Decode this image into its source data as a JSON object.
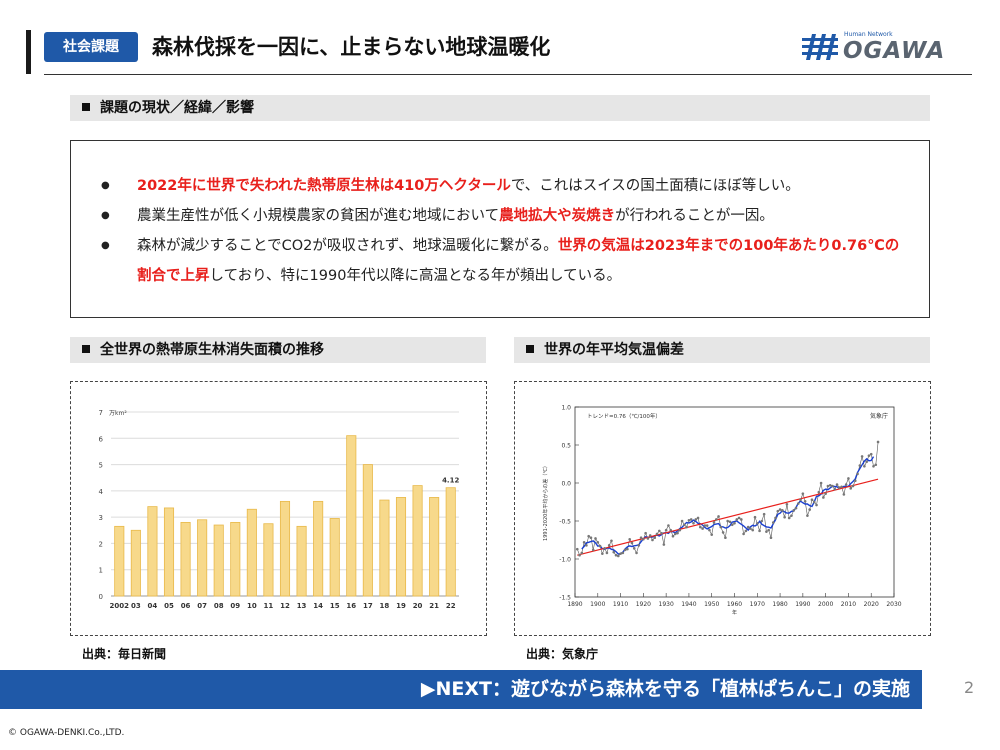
{
  "header": {
    "tag": "社会課題",
    "title": "森林伐採を一因に、止まらない地球温暖化",
    "logo_small": "Human Network",
    "logo_main": "OGAWA"
  },
  "sections": {
    "current": "課題の現状／経緯／影響",
    "forest_loss": "全世界の熱帯原生林消失面積の推移",
    "temperature": "世界の年平均気温偏差"
  },
  "bullets": [
    {
      "parts": [
        {
          "text": "2022年に世界で失われた熱帯原生林は410万ヘクタール",
          "highlight": true
        },
        {
          "text": "で、これはスイスの国土面積にほぼ等しい。",
          "highlight": false
        }
      ]
    },
    {
      "parts": [
        {
          "text": "農業生産性が低く小規模農家の貧困が進む地域において",
          "highlight": false
        },
        {
          "text": "農地拡大や炭焼き",
          "highlight": true
        },
        {
          "text": "が行われることが一因。",
          "highlight": false
        }
      ]
    },
    {
      "parts": [
        {
          "text": "森林が減少することでCO2が吸収されず、地球温暖化に繋がる。",
          "highlight": false
        },
        {
          "text": "世界の気温は2023年までの100年あたり0.76℃の割合で上昇",
          "highlight": true
        },
        {
          "text": "しており、特に1990年代以降に高温となる年が頻出している。",
          "highlight": false
        }
      ]
    }
  ],
  "sources": {
    "left": "出典：毎日新聞",
    "right": "出典：気象庁"
  },
  "banner": "▶NEXT：遊びながら森林を守る「植林ぱちんこ」の実施",
  "page_number": "2",
  "copyright": "© OGAWA-DENKI.Co.,LTD.",
  "colors": {
    "accent": "#1f59a8",
    "highlight": "#e8201c",
    "bar_fill": "#f7d98b",
    "bar_stroke": "#e8b94a"
  },
  "chart_data": [
    {
      "type": "bar",
      "title": "",
      "unit_label": "万km²",
      "categories": [
        "2002",
        "03",
        "04",
        "05",
        "06",
        "07",
        "08",
        "09",
        "10",
        "11",
        "12",
        "13",
        "14",
        "15",
        "16",
        "17",
        "18",
        "19",
        "20",
        "21",
        "22"
      ],
      "values": [
        2.65,
        2.5,
        3.4,
        3.35,
        2.8,
        2.9,
        2.7,
        2.8,
        3.3,
        2.75,
        3.6,
        2.65,
        3.6,
        2.95,
        6.1,
        5.0,
        3.65,
        3.75,
        4.2,
        3.75,
        4.12
      ],
      "data_labels": [
        {
          "category": "22",
          "label": "4.12"
        }
      ],
      "yticks": [
        0,
        1,
        2,
        3,
        4,
        5,
        6,
        7
      ],
      "ylim": [
        0,
        7
      ],
      "grid": true
    },
    {
      "type": "line",
      "title": "",
      "annotation": "トレンド=0.76（℃/100年）",
      "agency_label": "気象庁",
      "xlabel": "年",
      "ylabel": "1991-2020年平均からの差（℃）",
      "xlim": [
        1890,
        2030
      ],
      "ylim": [
        -1.5,
        1.0
      ],
      "xticks": [
        1890,
        1900,
        1910,
        1920,
        1930,
        1940,
        1950,
        1960,
        1970,
        1980,
        1990,
        2000,
        2010,
        2020,
        2030
      ],
      "yticks": [
        "1.0",
        "0.5",
        "0.0",
        "-0.5",
        "-1.0",
        "-1.5"
      ],
      "grid": false,
      "series": [
        {
          "kind": "annual",
          "x": [
            1891,
            1892,
            1893,
            1894,
            1895,
            1896,
            1897,
            1898,
            1899,
            1900,
            1901,
            1902,
            1903,
            1904,
            1905,
            1906,
            1907,
            1908,
            1909,
            1910,
            1911,
            1912,
            1913,
            1914,
            1915,
            1916,
            1917,
            1918,
            1919,
            1920,
            1921,
            1922,
            1923,
            1924,
            1925,
            1926,
            1927,
            1928,
            1929,
            1930,
            1931,
            1932,
            1933,
            1934,
            1935,
            1936,
            1937,
            1938,
            1939,
            1940,
            1941,
            1942,
            1943,
            1944,
            1945,
            1946,
            1947,
            1948,
            1949,
            1950,
            1951,
            1952,
            1953,
            1954,
            1955,
            1956,
            1957,
            1958,
            1959,
            1960,
            1961,
            1962,
            1963,
            1964,
            1965,
            1966,
            1967,
            1968,
            1969,
            1970,
            1971,
            1972,
            1973,
            1974,
            1975,
            1976,
            1977,
            1978,
            1979,
            1980,
            1981,
            1982,
            1983,
            1984,
            1985,
            1986,
            1987,
            1988,
            1989,
            1990,
            1991,
            1992,
            1993,
            1994,
            1995,
            1996,
            1997,
            1998,
            1999,
            2000,
            2001,
            2002,
            2003,
            2004,
            2005,
            2006,
            2007,
            2008,
            2009,
            2010,
            2011,
            2012,
            2013,
            2014,
            2015,
            2016,
            2017,
            2018,
            2019,
            2020,
            2021,
            2022,
            2023
          ],
          "y": [
            -0.87,
            -0.95,
            -0.92,
            -0.78,
            -0.82,
            -0.7,
            -0.72,
            -0.88,
            -0.73,
            -0.78,
            -0.83,
            -0.93,
            -0.86,
            -0.92,
            -0.82,
            -0.76,
            -0.91,
            -0.95,
            -0.96,
            -0.93,
            -0.92,
            -0.88,
            -0.87,
            -0.74,
            -0.79,
            -0.86,
            -0.92,
            -0.82,
            -0.72,
            -0.74,
            -0.66,
            -0.73,
            -0.69,
            -0.75,
            -0.72,
            -0.67,
            -0.63,
            -0.66,
            -0.81,
            -0.62,
            -0.56,
            -0.62,
            -0.7,
            -0.67,
            -0.66,
            -0.62,
            -0.5,
            -0.55,
            -0.58,
            -0.49,
            -0.48,
            -0.53,
            -0.48,
            -0.46,
            -0.58,
            -0.6,
            -0.56,
            -0.56,
            -0.62,
            -0.68,
            -0.52,
            -0.48,
            -0.44,
            -0.58,
            -0.65,
            -0.72,
            -0.5,
            -0.51,
            -0.55,
            -0.53,
            -0.48,
            -0.46,
            -0.48,
            -0.67,
            -0.63,
            -0.58,
            -0.6,
            -0.62,
            -0.45,
            -0.53,
            -0.63,
            -0.5,
            -0.41,
            -0.64,
            -0.62,
            -0.72,
            -0.52,
            -0.46,
            -0.37,
            -0.35,
            -0.36,
            -0.45,
            -0.28,
            -0.46,
            -0.43,
            -0.36,
            -0.33,
            -0.27,
            -0.22,
            -0.14,
            -0.24,
            -0.43,
            -0.35,
            -0.22,
            -0.25,
            -0.29,
            -0.12,
            0.0,
            -0.19,
            -0.14,
            -0.04,
            -0.03,
            -0.04,
            -0.08,
            -0.02,
            -0.06,
            -0.05,
            -0.15,
            -0.02,
            0.06,
            -0.07,
            -0.04,
            0.03,
            0.12,
            0.23,
            0.35,
            0.22,
            0.28,
            0.36,
            0.38,
            0.22,
            0.24,
            0.54
          ]
        },
        {
          "kind": "moving_average_5yr",
          "from_series": 0
        },
        {
          "kind": "trend",
          "x": [
            1891,
            2023
          ],
          "y": [
            -0.95,
            0.05
          ]
        }
      ]
    }
  ]
}
